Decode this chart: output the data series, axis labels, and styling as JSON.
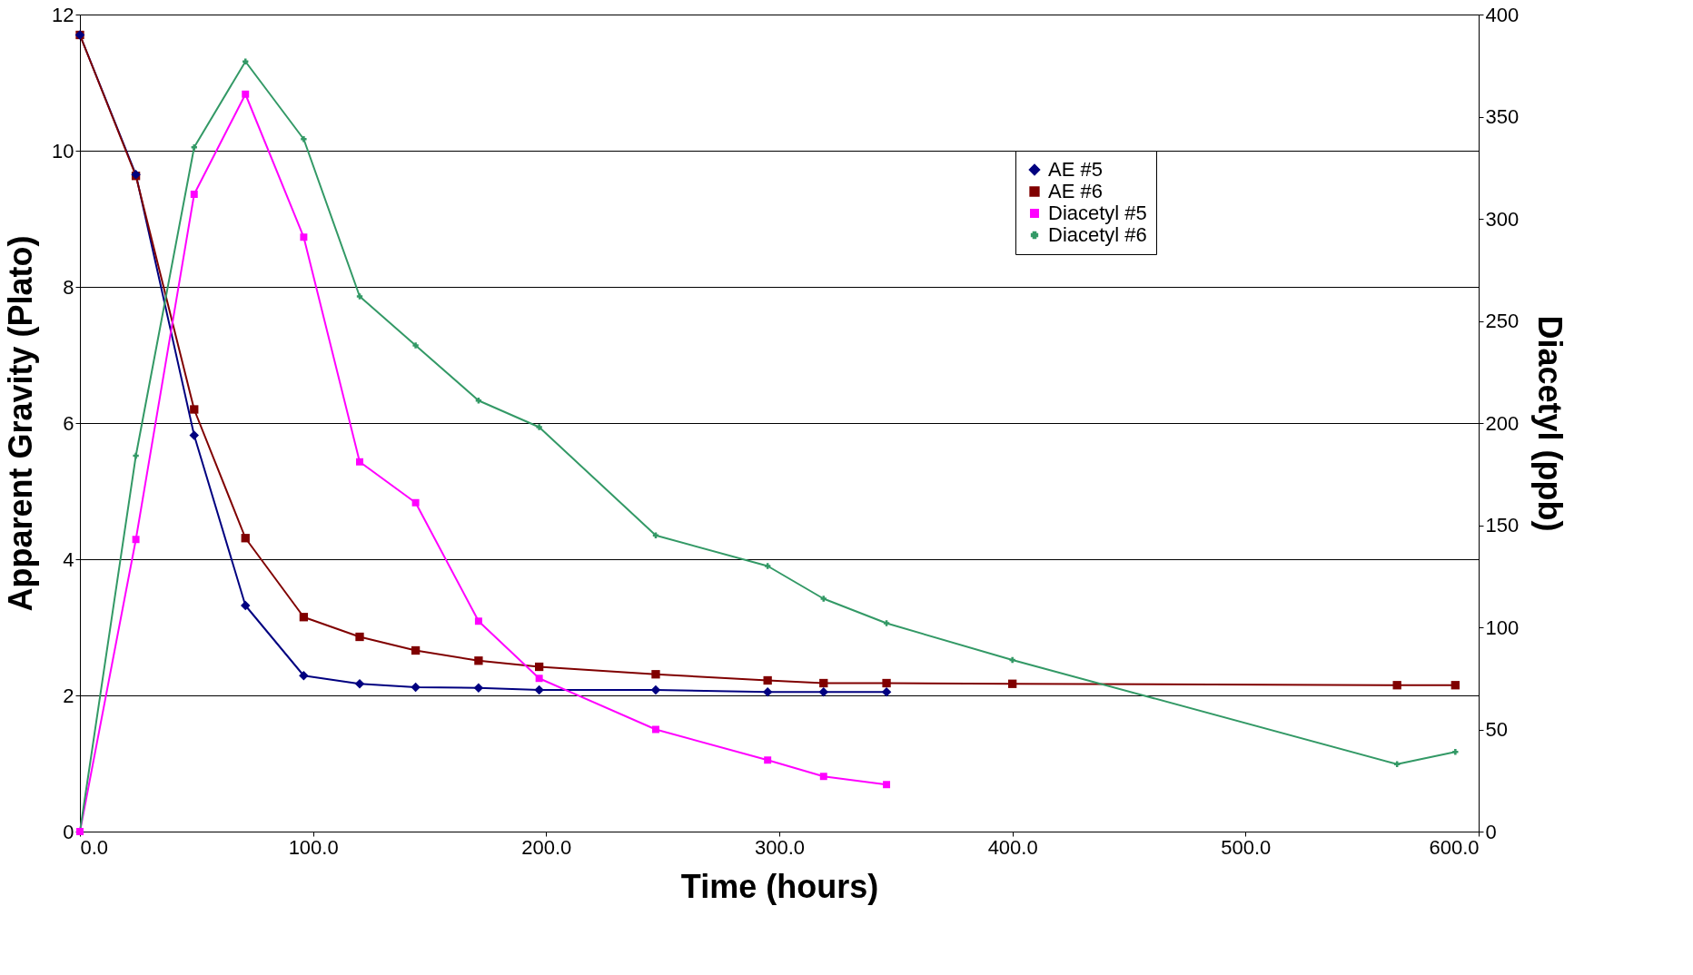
{
  "chart_data": {
    "type": "line",
    "xlabel": "Time (hours)",
    "ylabel": "Apparent Gravity (Plato)",
    "y2label": "Diacetyl (ppb)",
    "xlim": [
      0,
      600
    ],
    "xticks": [
      {
        "value": 0,
        "label": "0.0"
      },
      {
        "value": 100,
        "label": "100.0"
      },
      {
        "value": 200,
        "label": "200.0"
      },
      {
        "value": 300,
        "label": "300.0"
      },
      {
        "value": 400,
        "label": "400.0"
      },
      {
        "value": 500,
        "label": "500.0"
      },
      {
        "value": 600,
        "label": "600.0"
      }
    ],
    "ylim": [
      0,
      12
    ],
    "yticks": [
      0,
      2,
      4,
      6,
      8,
      10,
      12
    ],
    "y2lim": [
      0,
      400
    ],
    "y2ticks": [
      0,
      50,
      100,
      150,
      200,
      250,
      300,
      350,
      400
    ],
    "grid": "y",
    "legend": "top right",
    "line_style": "solid",
    "series": [
      {
        "name": "AE #5",
        "color": "#000080",
        "marker": "diamond",
        "x": [
          0,
          24,
          49,
          71,
          96,
          120,
          144,
          171,
          197,
          247,
          295,
          319,
          346
        ],
        "values": [
          11.7,
          9.65,
          5.82,
          3.32,
          2.29,
          2.17,
          2.12,
          2.11,
          2.08,
          2.08,
          2.05,
          2.05,
          2.05
        ]
      },
      {
        "name": "AE #6",
        "color": "#800000",
        "marker": "square",
        "x": [
          0,
          24,
          49,
          71,
          96,
          120,
          144,
          171,
          197,
          247,
          295,
          319,
          346,
          400,
          565,
          590
        ],
        "values": [
          11.7,
          9.63,
          6.2,
          4.31,
          3.15,
          2.86,
          2.66,
          2.51,
          2.42,
          2.31,
          2.22,
          2.18,
          2.18,
          2.17,
          2.15,
          2.15
        ]
      },
      {
        "name": "Diacetyl #5",
        "color": "#ff00ff",
        "marker": "square",
        "axis": "y2",
        "x": [
          0,
          24,
          49,
          71,
          96,
          120,
          144,
          171,
          197,
          247,
          295,
          319,
          346
        ],
        "values": [
          0,
          143,
          312,
          361,
          291,
          181,
          161,
          103,
          75,
          50,
          35,
          27,
          23
        ]
      },
      {
        "name": "Diacetyl #6",
        "color": "#339966",
        "marker": "cross",
        "axis": "y2",
        "x": [
          0,
          24,
          49,
          71,
          96,
          120,
          144,
          171,
          197,
          247,
          295,
          319,
          346,
          400,
          565,
          590
        ],
        "values": [
          0,
          184,
          335,
          377,
          339,
          262,
          238,
          211,
          198,
          145,
          130,
          114,
          102,
          84,
          33,
          39
        ]
      }
    ]
  }
}
